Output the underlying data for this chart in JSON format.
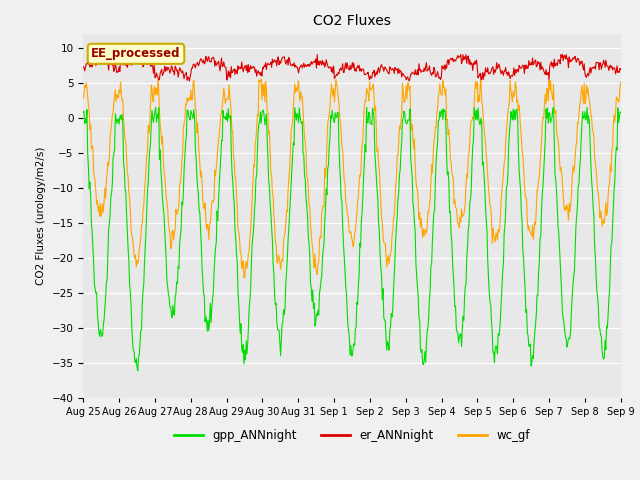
{
  "title": "CO2 Fluxes",
  "ylabel": "CO2 Fluxes (urology/m2/s)",
  "ylim": [
    -40,
    12
  ],
  "yticks": [
    -40,
    -35,
    -30,
    -25,
    -20,
    -15,
    -10,
    -5,
    0,
    5,
    10
  ],
  "xticklabels": [
    "Aug 25",
    "Aug 26",
    "Aug 27",
    "Aug 28",
    "Aug 29",
    "Aug 30",
    "Aug 31",
    "Sep 1",
    "Sep 2",
    "Sep 3",
    "Sep 4",
    "Sep 5",
    "Sep 6",
    "Sep 7",
    "Sep 8",
    "Sep 9"
  ],
  "color_gpp": "#00DD00",
  "color_er": "#DD0000",
  "color_wc": "#FFA500",
  "label_gpp": "gpp_ANNnight",
  "label_er": "er_ANNnight",
  "label_wc": "wc_gf",
  "annotation_text": "EE_processed",
  "bg_color": "#E8E8E8",
  "fig_bg": "#F0F0F0",
  "n_days": 15,
  "pts_per_day": 48
}
